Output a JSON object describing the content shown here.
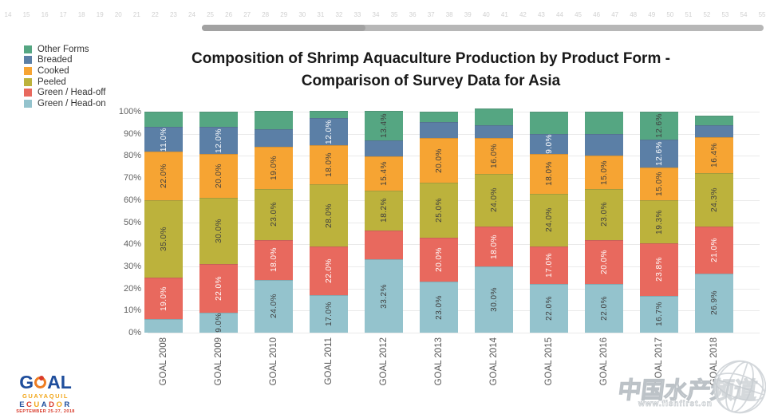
{
  "window": {
    "ruler_numbers": [
      14,
      15,
      16,
      17,
      18,
      19,
      20,
      21,
      22,
      23,
      24,
      25,
      26,
      27,
      28,
      29,
      30,
      31,
      32,
      33,
      34,
      35,
      36,
      37,
      38,
      39,
      40,
      41,
      42,
      43,
      44,
      45,
      46,
      47,
      48,
      49,
      50,
      51,
      52,
      53,
      54,
      55
    ]
  },
  "title": {
    "line1": "Composition of Shrimp Aquaculture Production by Product Form -",
    "line2": "Comparison of Survey Data for Asia"
  },
  "legend": {
    "items": [
      {
        "label": "Other Forms",
        "color": "#55A682"
      },
      {
        "label": "Breaded",
        "color": "#5B7FA6"
      },
      {
        "label": "Cooked",
        "color": "#F6A433"
      },
      {
        "label": "Peeled",
        "color": "#BCB23C"
      },
      {
        "label": "Green / Head-off",
        "color": "#E8695E"
      },
      {
        "label": "Green / Head-on",
        "color": "#94C3CD"
      }
    ]
  },
  "chart_data": {
    "type": "bar",
    "stacked": true,
    "title": "Composition of Shrimp Aquaculture Production by Product Form - Comparison of Survey Data for Asia",
    "categories": [
      "GOAL 2008",
      "GOAL 2009",
      "GOAL 2010",
      "GOAL 2011",
      "GOAL 2012",
      "GOAL 2013",
      "GOAL 2014",
      "GOAL 2015",
      "GOAL 2016",
      "GOAL 2017",
      "GOAL 2018"
    ],
    "y_ticks": [
      "0%",
      "10%",
      "20%",
      "30%",
      "40%",
      "50%",
      "60%",
      "70%",
      "80%",
      "90%",
      "100%"
    ],
    "ylim": [
      0,
      100
    ],
    "grid": true,
    "legend_position": "top-left",
    "series": [
      {
        "name": "Green / Head-on",
        "color": "#94C3CD",
        "label_color": "#3f3f3f",
        "values": [
          6.0,
          9.0,
          24.0,
          17.0,
          33.2,
          23.0,
          30.0,
          22.0,
          22.0,
          16.7,
          26.9
        ],
        "labels": [
          null,
          "9.0%",
          "24.0%",
          "17.0%",
          "33.2%",
          "23.0%",
          "30.0%",
          "22.0%",
          "22.0%",
          "16.7%",
          "26.9%"
        ]
      },
      {
        "name": "Green / Head-off",
        "color": "#E8695E",
        "label_color": "#ffffff",
        "values": [
          19.0,
          22.0,
          18.0,
          22.0,
          13.0,
          20.0,
          18.0,
          17.0,
          20.0,
          23.8,
          21.0
        ],
        "labels": [
          "19.0%",
          "22.0%",
          "18.0%",
          "22.0%",
          null,
          "20.0%",
          "18.0%",
          "17.0%",
          "20.0%",
          "23.8%",
          "21.0%"
        ]
      },
      {
        "name": "Peeled",
        "color": "#BCB23C",
        "label_color": "#3f3f3f",
        "values": [
          35.0,
          30.0,
          23.0,
          28.0,
          18.2,
          25.0,
          24.0,
          24.0,
          23.0,
          19.3,
          24.3
        ],
        "labels": [
          "35.0%",
          "30.0%",
          "23.0%",
          "28.0%",
          "18.2%",
          "25.0%",
          "24.0%",
          "24.0%",
          "23.0%",
          "19.3%",
          "24.3%"
        ]
      },
      {
        "name": "Cooked",
        "color": "#F6A433",
        "label_color": "#3f3f3f",
        "values": [
          22.0,
          20.0,
          19.0,
          18.0,
          15.4,
          20.0,
          16.0,
          18.0,
          15.0,
          15.0,
          16.4
        ],
        "labels": [
          "22.0%",
          "20.0%",
          "19.0%",
          "18.0%",
          "15.4%",
          "20.0%",
          "16.0%",
          "18.0%",
          "15.0%",
          "15.0%",
          "16.4%"
        ]
      },
      {
        "name": "Breaded",
        "color": "#5B7FA6",
        "label_color": "#ffffff",
        "values": [
          11.0,
          12.0,
          8.0,
          12.0,
          7.2,
          7.5,
          5.8,
          9.0,
          10.0,
          12.6,
          5.4
        ],
        "labels": [
          "11.0%",
          "12.0%",
          null,
          "12.0%",
          null,
          null,
          null,
          "9.0%",
          null,
          "12.6%",
          null
        ]
      },
      {
        "name": "Other Forms",
        "color": "#55A682",
        "label_color": "#3f3f3f",
        "values": [
          7.0,
          7.0,
          8.3,
          3.5,
          13.4,
          4.5,
          7.7,
          10.0,
          10.0,
          12.6,
          4.3
        ],
        "labels": [
          null,
          null,
          null,
          null,
          "13.4%",
          null,
          null,
          null,
          null,
          "12.6%",
          null
        ]
      }
    ]
  },
  "footer": {
    "logo": {
      "goal_g": "G",
      "goal_al": "AL",
      "guayaquil": "GUAYAQUIL",
      "ecuador_letters": [
        {
          "ch": "E",
          "color": "#1F4E9C"
        },
        {
          "ch": "C",
          "color": "#D93B2B"
        },
        {
          "ch": "U",
          "color": "#F2A71B"
        },
        {
          "ch": "A",
          "color": "#1F4E9C"
        },
        {
          "ch": "D",
          "color": "#D93B2B"
        },
        {
          "ch": "O",
          "color": "#F2A71B"
        },
        {
          "ch": "R",
          "color": "#1F4E9C"
        }
      ],
      "date": "SEPTEMBER 25-27, 2018"
    },
    "watermark": {
      "text": "中国水产频道",
      "url": "www.fishfirst.cn"
    }
  }
}
